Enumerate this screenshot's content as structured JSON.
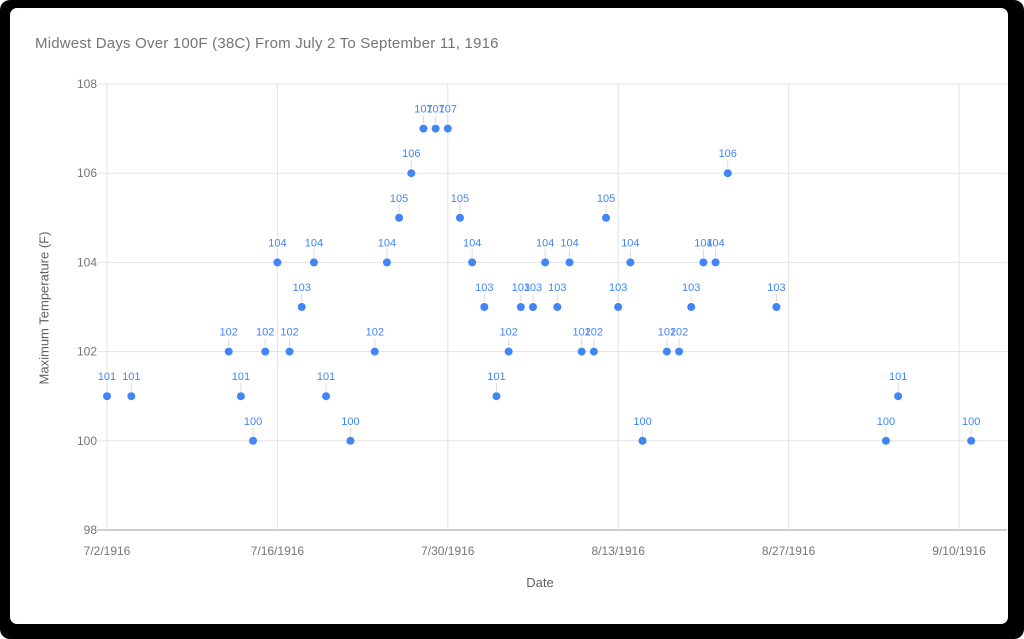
{
  "window": {
    "frame_color": "#000000",
    "card_color": "#ffffff"
  },
  "colors": {
    "accent": "#4285f4",
    "point": "#4285f4",
    "point_label": "#4285f4",
    "title_text": "#757575",
    "axis_title_text": "#616161",
    "tick_text": "#757575",
    "gridline": "#e3e3e3",
    "baseline": "#9e9e9e",
    "leader_line": "#dadada"
  },
  "chart_data": {
    "type": "scatter",
    "title": "Midwest Days Over 100F (38C) From July 2 To September 11, 1916",
    "xlabel": "Date",
    "ylabel": "Maximum Temperature (F)",
    "x_tick_labels": [
      "7/2/1916",
      "7/16/1916",
      "7/30/1916",
      "8/13/1916",
      "8/27/1916",
      "9/10/1916"
    ],
    "y_tick_labels": [
      "98",
      "100",
      "102",
      "104",
      "106",
      "108"
    ],
    "ylim": [
      98,
      108
    ],
    "grid": true,
    "legend": "none",
    "points": [
      {
        "date": "7/2/1916",
        "value": 101
      },
      {
        "date": "7/4/1916",
        "value": 101
      },
      {
        "date": "7/12/1916",
        "value": 102
      },
      {
        "date": "7/13/1916",
        "value": 101
      },
      {
        "date": "7/14/1916",
        "value": 100
      },
      {
        "date": "7/15/1916",
        "value": 102
      },
      {
        "date": "7/16/1916",
        "value": 104
      },
      {
        "date": "7/17/1916",
        "value": 102
      },
      {
        "date": "7/18/1916",
        "value": 103
      },
      {
        "date": "7/19/1916",
        "value": 104
      },
      {
        "date": "7/20/1916",
        "value": 101
      },
      {
        "date": "7/22/1916",
        "value": 100
      },
      {
        "date": "7/24/1916",
        "value": 102
      },
      {
        "date": "7/25/1916",
        "value": 104
      },
      {
        "date": "7/26/1916",
        "value": 105
      },
      {
        "date": "7/27/1916",
        "value": 106
      },
      {
        "date": "7/28/1916",
        "value": 107
      },
      {
        "date": "7/29/1916",
        "value": 107
      },
      {
        "date": "7/30/1916",
        "value": 107
      },
      {
        "date": "7/31/1916",
        "value": 105
      },
      {
        "date": "8/1/1916",
        "value": 104
      },
      {
        "date": "8/2/1916",
        "value": 103
      },
      {
        "date": "8/3/1916",
        "value": 101
      },
      {
        "date": "8/4/1916",
        "value": 102
      },
      {
        "date": "8/5/1916",
        "value": 103
      },
      {
        "date": "8/6/1916",
        "value": 103
      },
      {
        "date": "8/7/1916",
        "value": 104
      },
      {
        "date": "8/8/1916",
        "value": 103
      },
      {
        "date": "8/9/1916",
        "value": 104
      },
      {
        "date": "8/10/1916",
        "value": 102
      },
      {
        "date": "8/11/1916",
        "value": 102
      },
      {
        "date": "8/12/1916",
        "value": 105
      },
      {
        "date": "8/13/1916",
        "value": 103
      },
      {
        "date": "8/14/1916",
        "value": 104
      },
      {
        "date": "8/15/1916",
        "value": 100
      },
      {
        "date": "8/17/1916",
        "value": 102
      },
      {
        "date": "8/18/1916",
        "value": 102
      },
      {
        "date": "8/19/1916",
        "value": 103
      },
      {
        "date": "8/20/1916",
        "value": 104
      },
      {
        "date": "8/21/1916",
        "value": 104
      },
      {
        "date": "8/22/1916",
        "value": 106
      },
      {
        "date": "8/26/1916",
        "value": 103
      },
      {
        "date": "9/4/1916",
        "value": 100
      },
      {
        "date": "9/5/1916",
        "value": 101
      },
      {
        "date": "9/11/1916",
        "value": 100
      }
    ]
  }
}
